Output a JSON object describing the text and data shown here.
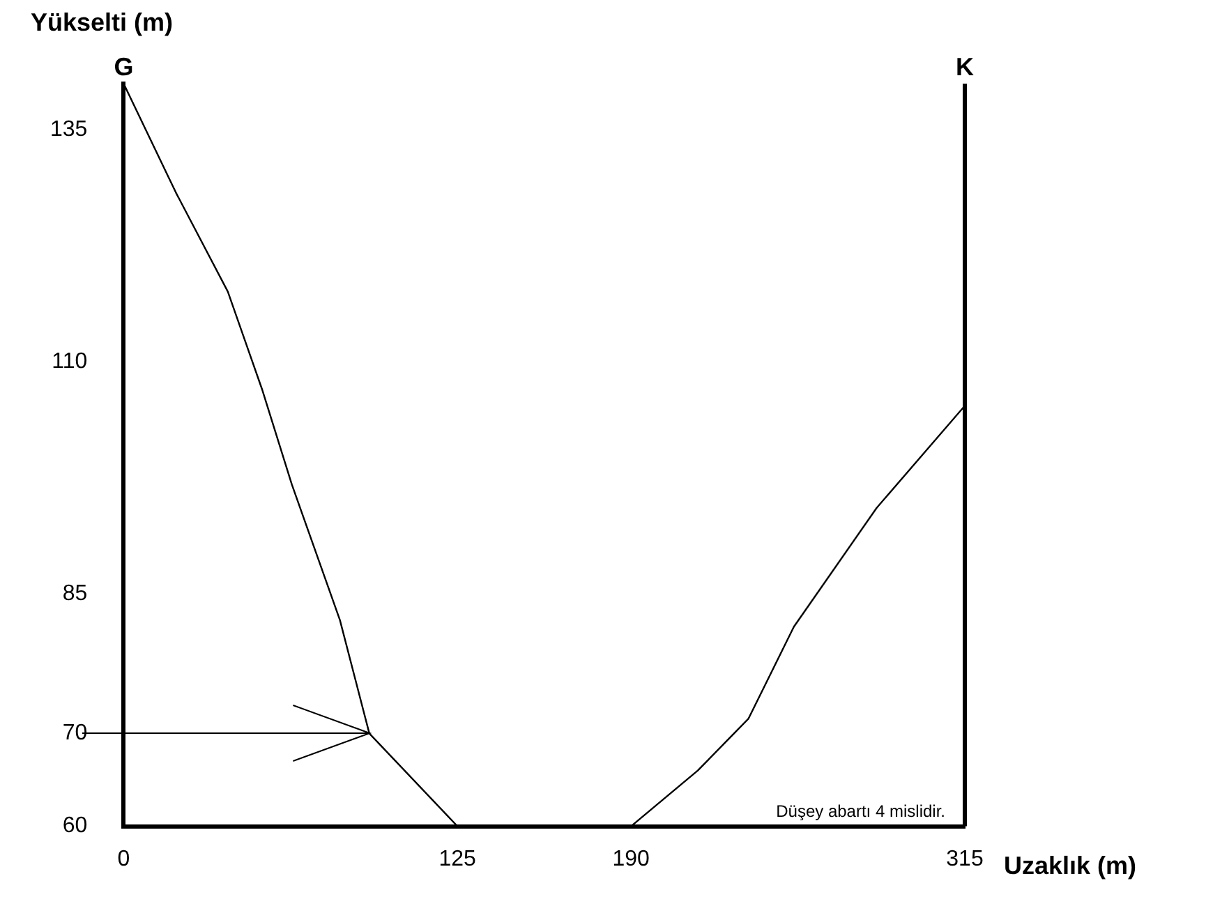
{
  "chart_data": {
    "type": "line",
    "xlabel": "Uzaklık (m)",
    "ylabel": "Yükselti (m)",
    "x": [
      0,
      19.5,
      39,
      51.8,
      63,
      81,
      92,
      125,
      190,
      215,
      234,
      251,
      282,
      315
    ],
    "series": [
      {
        "color": "#000000",
        "values": [
          140,
          128.3,
          117.6,
          107.1,
          96.8,
          82.2,
          70,
          60,
          60,
          66,
          71.6,
          81.5,
          94.3,
          105.3
        ]
      }
    ],
    "xlim": [
      0,
      315
    ],
    "xticks": [
      0,
      125,
      190,
      315
    ],
    "ylim": [
      60,
      140
    ],
    "yticks": [
      60,
      70,
      85,
      110,
      135
    ],
    "grid": false,
    "legend": false,
    "marker": "none",
    "line_style": "solid",
    "annotations": [
      {
        "text": "G",
        "x": 0,
        "y": 140
      },
      "K",
      "Düşey abartı 4 mislidir."
    ]
  }
}
